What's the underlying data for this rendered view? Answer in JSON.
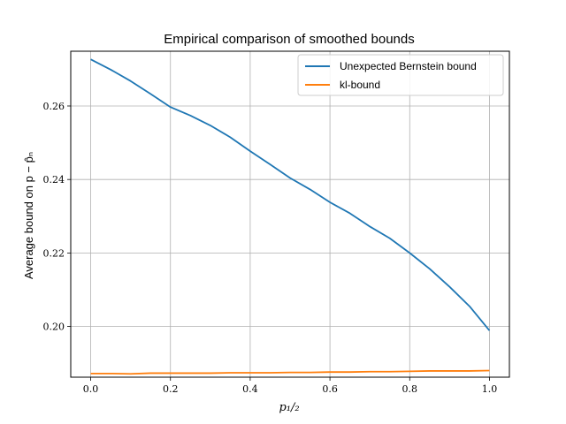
{
  "chart_data": {
    "type": "line",
    "title": "Empirical comparison of smoothed bounds",
    "xlabel": "p₁/₂",
    "ylabel": "Average bound on p − p̂ₙ",
    "xlim": [
      -0.05,
      1.05
    ],
    "ylim": [
      0.1862,
      0.2749
    ],
    "x_ticks": [
      0.0,
      0.2,
      0.4,
      0.6,
      0.8,
      1.0
    ],
    "x_tick_labels": [
      "0.0",
      "0.2",
      "0.4",
      "0.6",
      "0.8",
      "1.0"
    ],
    "y_ticks": [
      0.2,
      0.22,
      0.24,
      0.26
    ],
    "y_tick_labels": [
      "0.20",
      "0.22",
      "0.24",
      "0.26"
    ],
    "grid": true,
    "legend_position": "top-right",
    "series": [
      {
        "name": "Unexpected Bernstein bound",
        "color": "#1f77b4",
        "x": [
          0.0,
          0.05,
          0.1,
          0.15,
          0.2,
          0.25,
          0.3,
          0.35,
          0.4,
          0.45,
          0.5,
          0.55,
          0.6,
          0.65,
          0.7,
          0.75,
          0.8,
          0.85,
          0.9,
          0.95,
          1.0
        ],
        "y": [
          0.2727,
          0.2699,
          0.2668,
          0.2633,
          0.2597,
          0.2574,
          0.2547,
          0.2515,
          0.2477,
          0.2441,
          0.2404,
          0.2373,
          0.2338,
          0.2308,
          0.2272,
          0.224,
          0.22,
          0.2157,
          0.2108,
          0.2055,
          0.1989
        ]
      },
      {
        "name": "kl-bound",
        "color": "#ff7f0e",
        "x": [
          0.0,
          0.05,
          0.1,
          0.15,
          0.2,
          0.25,
          0.3,
          0.35,
          0.4,
          0.45,
          0.5,
          0.55,
          0.6,
          0.65,
          0.7,
          0.75,
          0.8,
          0.85,
          0.9,
          0.95,
          1.0
        ],
        "y": [
          0.1872,
          0.1872,
          0.1871,
          0.1873,
          0.1873,
          0.1873,
          0.1873,
          0.1874,
          0.1874,
          0.1874,
          0.1875,
          0.1875,
          0.1876,
          0.1876,
          0.1877,
          0.1877,
          0.1878,
          0.1879,
          0.1879,
          0.1879,
          0.188
        ]
      }
    ]
  }
}
